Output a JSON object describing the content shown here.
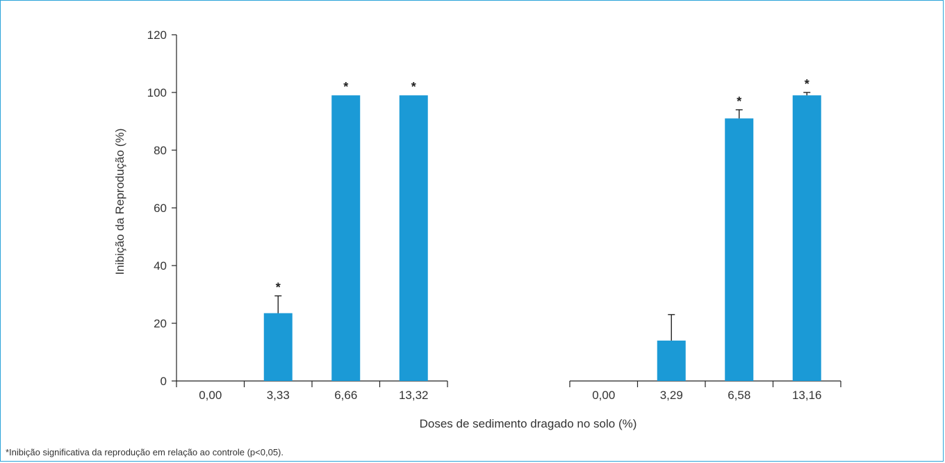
{
  "chart_data": {
    "type": "bar",
    "ylabel": "Inibição da Reprodução (%)",
    "xlabel": "Doses de sedimento dragado no solo (%)",
    "ylim": [
      0,
      120
    ],
    "yticks": [
      "0",
      "20",
      "40",
      "60",
      "80",
      "100",
      "120"
    ],
    "grid": false,
    "bar_color": "#1b9ad6",
    "groups": [
      {
        "categories": [
          "0,00",
          "3,33",
          "6,66",
          "13,32"
        ],
        "values": [
          0,
          23.5,
          99,
          99
        ],
        "errors": [
          0,
          6,
          0,
          0
        ],
        "significant": [
          false,
          true,
          true,
          true
        ]
      },
      {
        "categories": [
          "0,00",
          "3,29",
          "6,58",
          "13,16"
        ],
        "values": [
          0,
          14,
          91,
          99
        ],
        "errors": [
          0,
          9,
          3,
          1
        ],
        "significant": [
          false,
          false,
          true,
          true
        ]
      }
    ],
    "significance_marker": "*",
    "footnote": "*Inibição significativa da reprodução em relação ao controle (p<0,05)."
  }
}
